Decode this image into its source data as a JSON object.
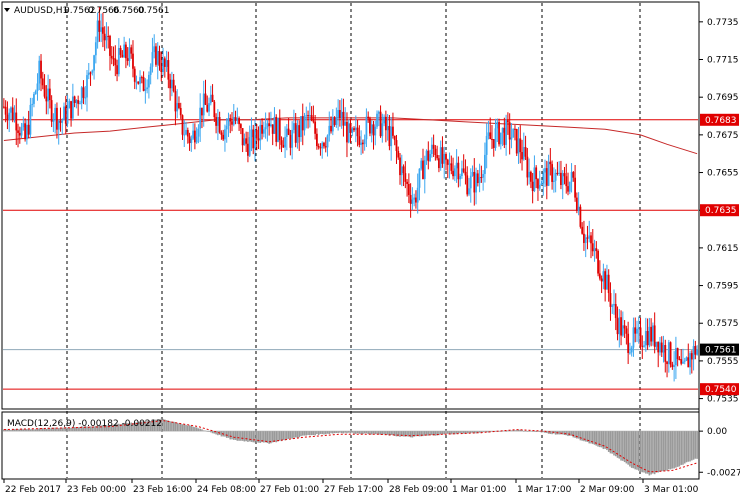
{
  "chart_data": [
    {
      "type": "candlestick",
      "symbol_header": {
        "symbol": "AUDUSD,H1",
        "open": "0.7562",
        "high": "0.7566",
        "low": "0.7560",
        "close": "0.7561"
      },
      "ylim": [
        0.753,
        0.7745
      ],
      "y_ticks": [
        "0.7735",
        "0.7715",
        "0.7695",
        "0.7675",
        "0.7655",
        "0.7635",
        "0.7615",
        "0.7595",
        "0.7575",
        "0.7555",
        "0.7535"
      ],
      "y_tick_values": [
        0.7735,
        0.7715,
        0.7695,
        0.7675,
        0.7655,
        0.7635,
        0.7615,
        0.7595,
        0.7575,
        0.7555,
        0.7535
      ],
      "x_labels": [
        "22 Feb 2017",
        "23 Feb 00:00",
        "23 Feb 16:00",
        "24 Feb 08:00",
        "27 Feb 01:00",
        "27 Feb 17:00",
        "28 Feb 09:00",
        "1 Mar 01:00",
        "1 Mar 17:00",
        "2 Mar 09:00",
        "3 Mar 01:00"
      ],
      "horizontal_levels": [
        {
          "value": 0.7683,
          "label": "0.7683",
          "color": "#e00000"
        },
        {
          "value": 0.7635,
          "label": "0.7635",
          "color": "#e00000"
        },
        {
          "value": 0.754,
          "label": "0.7540",
          "color": "#e00000"
        }
      ],
      "current_price": {
        "value": 0.7561,
        "label": "0.7561"
      },
      "bull_color": "#3ca7f0",
      "bear_color": "#e00000",
      "ma_color": "#c62828",
      "close_anchors": [
        [
          0,
          0.769
        ],
        [
          6,
          0.7686
        ],
        [
          12,
          0.7672
        ],
        [
          20,
          0.7708
        ],
        [
          26,
          0.769
        ],
        [
          32,
          0.7682
        ],
        [
          40,
          0.7692
        ],
        [
          48,
          0.7705
        ],
        [
          54,
          0.7735
        ],
        [
          62,
          0.7712
        ],
        [
          70,
          0.7718
        ],
        [
          78,
          0.77
        ],
        [
          86,
          0.7718
        ],
        [
          94,
          0.7705
        ],
        [
          100,
          0.768
        ],
        [
          106,
          0.7672
        ],
        [
          112,
          0.769
        ],
        [
          118,
          0.769
        ],
        [
          124,
          0.7678
        ],
        [
          130,
          0.7685
        ],
        [
          136,
          0.767
        ],
        [
          142,
          0.7672
        ],
        [
          148,
          0.7686
        ],
        [
          154,
          0.7678
        ],
        [
          160,
          0.7672
        ],
        [
          166,
          0.7676
        ],
        [
          172,
          0.7684
        ],
        [
          178,
          0.7672
        ],
        [
          184,
          0.7675
        ],
        [
          190,
          0.7686
        ],
        [
          196,
          0.7672
        ],
        [
          202,
          0.7676
        ],
        [
          208,
          0.7682
        ],
        [
          214,
          0.768
        ],
        [
          220,
          0.7672
        ],
        [
          226,
          0.7652
        ],
        [
          232,
          0.764
        ],
        [
          238,
          0.7662
        ],
        [
          244,
          0.7668
        ],
        [
          250,
          0.7656
        ],
        [
          256,
          0.766
        ],
        [
          262,
          0.765
        ],
        [
          268,
          0.765
        ],
        [
          274,
          0.7672
        ],
        [
          280,
          0.7676
        ],
        [
          286,
          0.7676
        ],
        [
          292,
          0.7668
        ],
        [
          298,
          0.7652
        ],
        [
          304,
          0.7652
        ],
        [
          310,
          0.7655
        ],
        [
          316,
          0.7649
        ],
        [
          322,
          0.7651
        ],
        [
          328,
          0.7622
        ],
        [
          334,
          0.7612
        ],
        [
          340,
          0.7598
        ],
        [
          346,
          0.7578
        ],
        [
          352,
          0.7566
        ],
        [
          358,
          0.7566
        ],
        [
          364,
          0.757
        ],
        [
          370,
          0.7566
        ],
        [
          374,
          0.756
        ],
        [
          380,
          0.7555
        ],
        [
          384,
          0.7548
        ],
        [
          388,
          0.7558
        ],
        [
          392,
          0.7562
        ]
      ],
      "ma_points": [
        [
          0,
          0.7672
        ],
        [
          20,
          0.7674
        ],
        [
          40,
          0.7676
        ],
        [
          60,
          0.7677
        ],
        [
          80,
          0.7679
        ],
        [
          100,
          0.7681
        ],
        [
          120,
          0.7683
        ],
        [
          140,
          0.7683
        ],
        [
          160,
          0.7684
        ],
        [
          180,
          0.7684
        ],
        [
          200,
          0.7684
        ],
        [
          220,
          0.7684
        ],
        [
          240,
          0.7683
        ],
        [
          260,
          0.7682
        ],
        [
          280,
          0.7681
        ],
        [
          300,
          0.768
        ],
        [
          320,
          0.7679
        ],
        [
          340,
          0.7678
        ],
        [
          360,
          0.7675
        ],
        [
          375,
          0.767
        ],
        [
          392,
          0.7665
        ]
      ]
    },
    {
      "type": "bar",
      "indicator_label": "MACD(12,26,9) -0.00182 -0.00212",
      "ylim": [
        -0.0031,
        0.0012
      ],
      "y_ticks": [
        "0.00",
        "-0.00272"
      ],
      "y_tick_values": [
        0.0,
        -0.00272
      ],
      "bar_color": "#9a9a9a",
      "signal_color": "#e00000",
      "hist_anchors": [
        [
          0,
          0.0001
        ],
        [
          30,
          0.0002
        ],
        [
          60,
          0.0004
        ],
        [
          90,
          0.0008
        ],
        [
          110,
          0.0002
        ],
        [
          130,
          -0.0006
        ],
        [
          150,
          -0.0008
        ],
        [
          170,
          -0.0003
        ],
        [
          190,
          -0.0001
        ],
        [
          210,
          -0.0002
        ],
        [
          230,
          -0.0004
        ],
        [
          250,
          -0.0002
        ],
        [
          270,
          -0.0001
        ],
        [
          290,
          0.0001
        ],
        [
          305,
          -0.0001
        ],
        [
          320,
          -0.0003
        ],
        [
          340,
          -0.0012
        ],
        [
          355,
          -0.0024
        ],
        [
          365,
          -0.0029
        ],
        [
          378,
          -0.0025
        ],
        [
          392,
          -0.0018
        ]
      ],
      "signal_anchors": [
        [
          0,
          0.0001
        ],
        [
          30,
          0.0002
        ],
        [
          60,
          0.0003
        ],
        [
          90,
          0.0007
        ],
        [
          110,
          0.0003
        ],
        [
          130,
          -0.0004
        ],
        [
          150,
          -0.0007
        ],
        [
          170,
          -0.0004
        ],
        [
          190,
          -0.0002
        ],
        [
          210,
          -0.0002
        ],
        [
          230,
          -0.0003
        ],
        [
          250,
          -0.0002
        ],
        [
          270,
          -0.0001
        ],
        [
          290,
          0.0001
        ],
        [
          305,
          0.0
        ],
        [
          320,
          -0.0002
        ],
        [
          340,
          -0.001
        ],
        [
          355,
          -0.0021
        ],
        [
          365,
          -0.0027
        ],
        [
          378,
          -0.0026
        ],
        [
          392,
          -0.0021
        ]
      ]
    }
  ]
}
